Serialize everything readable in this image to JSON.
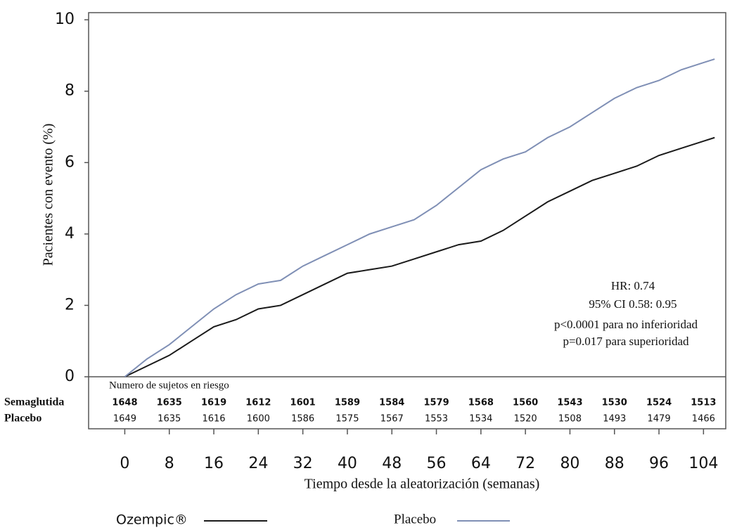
{
  "chart_data": {
    "type": "line",
    "x_label": "Tiempo desde la aleatorización (semanas)",
    "y_label": "Pacientes con evento (%)",
    "x": [
      0,
      4,
      8,
      12,
      16,
      20,
      24,
      28,
      32,
      36,
      40,
      44,
      48,
      52,
      56,
      60,
      64,
      68,
      72,
      76,
      80,
      84,
      88,
      92,
      96,
      100,
      104,
      106
    ],
    "series": [
      {
        "name": "Ozempic®",
        "color": "#1a1a1a",
        "values": [
          0,
          0.3,
          0.6,
          1.0,
          1.4,
          1.6,
          1.9,
          2.0,
          2.3,
          2.6,
          2.9,
          3.0,
          3.1,
          3.3,
          3.5,
          3.7,
          3.8,
          4.1,
          4.5,
          4.9,
          5.2,
          5.5,
          5.7,
          5.9,
          6.2,
          6.4,
          6.6,
          6.7
        ]
      },
      {
        "name": "Placebo",
        "color": "#7f8fb5",
        "values": [
          0,
          0.5,
          0.9,
          1.4,
          1.9,
          2.3,
          2.6,
          2.7,
          3.1,
          3.4,
          3.7,
          4.0,
          4.2,
          4.4,
          4.8,
          5.3,
          5.8,
          6.1,
          6.3,
          6.7,
          7.0,
          7.4,
          7.8,
          8.1,
          8.3,
          8.6,
          8.8,
          8.9
        ]
      }
    ],
    "xlim": [
      -6.5,
      108
    ],
    "ylim": [
      0,
      10.2
    ],
    "xticks": [
      0,
      8,
      16,
      24,
      32,
      40,
      48,
      56,
      64,
      72,
      80,
      88,
      96,
      104
    ],
    "yticks": [
      0,
      2,
      4,
      6,
      8,
      10
    ],
    "annotations": [
      "HR: 0.74",
      "95% CI 0.58: 0.95",
      "p<0.0001 para no inferioridad",
      "p=0.017 para superioridad"
    ],
    "risk_table": {
      "title": "Numero de sujetos en riesgo",
      "rows": [
        {
          "label": "Semaglutida",
          "color": "#111111",
          "values": [
            1648,
            1635,
            1619,
            1612,
            1601,
            1589,
            1584,
            1579,
            1568,
            1560,
            1543,
            1530,
            1524,
            1513
          ]
        },
        {
          "label": "Placebo",
          "color": "#6a78a0",
          "values": [
            1649,
            1635,
            1616,
            1600,
            1586,
            1575,
            1567,
            1553,
            1534,
            1520,
            1508,
            1493,
            1479,
            1466
          ]
        }
      ]
    }
  }
}
